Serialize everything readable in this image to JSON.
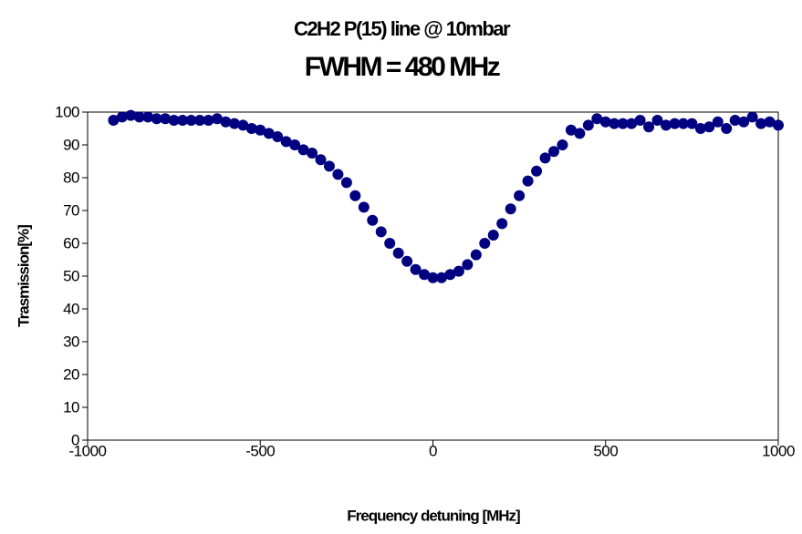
{
  "chart_data": {
    "type": "scatter",
    "title": "C2H2 P(15) line @ 10mbar",
    "subtitle": "FWHM = 480 MHz",
    "x_label": "Frequency detuning [MHz]",
    "y_label": "Trasmission[%]",
    "xlim": [
      -1000,
      1000
    ],
    "xticks": [
      -1000,
      -500,
      0,
      500,
      1000
    ],
    "ylim": [
      0,
      100
    ],
    "yticks": [
      0,
      10,
      20,
      30,
      40,
      50,
      60,
      70,
      80,
      90,
      100
    ],
    "grid": false,
    "color": "#000080",
    "x": [
      -925,
      -900,
      -875,
      -850,
      -825,
      -800,
      -775,
      -750,
      -725,
      -700,
      -675,
      -650,
      -625,
      -600,
      -575,
      -550,
      -525,
      -500,
      -475,
      -450,
      -425,
      -400,
      -375,
      -350,
      -325,
      -300,
      -275,
      -250,
      -225,
      -200,
      -175,
      -150,
      -125,
      -100,
      -75,
      -50,
      -25,
      0,
      25,
      50,
      75,
      100,
      125,
      150,
      175,
      200,
      225,
      250,
      275,
      300,
      325,
      350,
      375,
      400,
      425,
      450,
      475,
      500,
      525,
      550,
      575,
      600,
      625,
      650,
      675,
      700,
      725,
      750,
      775,
      800,
      825,
      850,
      875,
      900,
      925,
      950,
      975,
      1000
    ],
    "values": [
      97.5,
      98.5,
      99,
      98.5,
      98.5,
      98,
      98,
      97.5,
      97.5,
      97.5,
      97.5,
      97.5,
      98,
      97,
      96.5,
      96,
      95,
      94.5,
      93.5,
      92.5,
      91,
      90,
      88.5,
      87.5,
      85.5,
      83.5,
      81,
      78.5,
      74.5,
      71,
      67,
      63.5,
      60,
      57,
      54.5,
      52,
      50.5,
      49.5,
      49.5,
      50.5,
      51.5,
      53.5,
      56.5,
      60,
      62.5,
      66,
      70.5,
      74.5,
      79,
      82,
      86,
      88,
      90,
      94.5,
      93.5,
      96,
      98,
      97,
      96.5,
      96.5,
      96.5,
      97.5,
      95.5,
      97.5,
      96,
      96.5,
      96.5,
      96.5,
      95,
      95.5,
      97,
      95,
      97.5,
      97,
      98.5,
      96.5,
      97,
      96
    ]
  }
}
